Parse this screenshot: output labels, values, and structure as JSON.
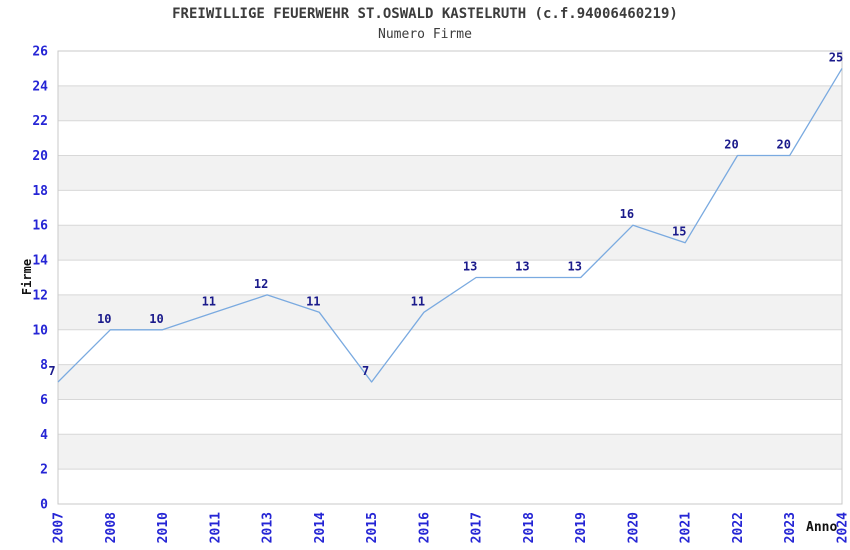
{
  "page": {
    "background": "#ffffff"
  },
  "chart_data": {
    "type": "line",
    "title": "FREIWILLIGE FEUERWEHR ST.OSWALD KASTELRUTH (c.f.94006460219)",
    "subtitle": "Numero Firme",
    "xlabel": "Anno",
    "ylabel": "Firme",
    "categories": [
      "2007",
      "2008",
      "2010",
      "2011",
      "2013",
      "2014",
      "2015",
      "2016",
      "2017",
      "2018",
      "2019",
      "2020",
      "2021",
      "2022",
      "2023",
      "2024"
    ],
    "series": [
      {
        "name": "Numero Firme",
        "values": [
          7,
          10,
          10,
          11,
          12,
          11,
          7,
          11,
          13,
          13,
          13,
          16,
          15,
          20,
          20,
          25
        ]
      }
    ],
    "data_labels_shown": true,
    "ylim": [
      0,
      26
    ],
    "ytick_step": 2,
    "legend": "none",
    "grid": "horizontal-bands-every-2-units",
    "colors": {
      "line": "#7aaae0",
      "tick_label": "#2525d5",
      "data_label": "#1a1a8b",
      "band_fill": "#f2f2f2",
      "gridline": "#d8d8d8",
      "plot_border": "#c9c9c9",
      "title_text": "#3c3c3c",
      "axis_title_text": "#111111",
      "background": "#ffffff"
    }
  }
}
